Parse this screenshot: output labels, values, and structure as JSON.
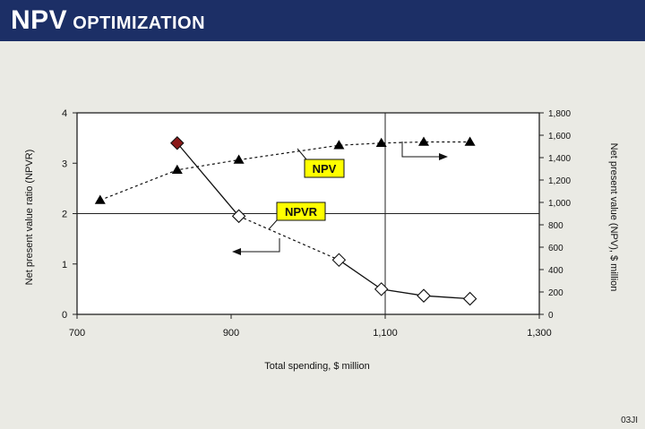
{
  "header": {
    "title_main": "NPV",
    "title_sub": "OPTIMIZATION"
  },
  "figure_id": "03JI",
  "chart_data": {
    "type": "scatter",
    "xlabel": "Total spending, $ million",
    "ylabel_left": "Net present value ratio (NPVR)",
    "ylabel_right": "Net present value (NPV), $ million",
    "xlim": [
      700,
      1300
    ],
    "ylim_left": [
      0,
      4
    ],
    "ylim_right": [
      0,
      1800
    ],
    "x_ticks": [
      "700",
      "900",
      "1,100",
      "1,300"
    ],
    "y_left_ticks": [
      "0",
      "1",
      "2",
      "3",
      "4"
    ],
    "y_right_ticks": [
      "0",
      "200",
      "400",
      "600",
      "800",
      "1,000",
      "1,200",
      "1,400",
      "1,600",
      "1,800"
    ],
    "reference_lines": {
      "x": 1100,
      "y_left": 2
    },
    "series": [
      {
        "name": "NPV",
        "axis": "right",
        "marker": "triangle",
        "line": "dashed",
        "color": "#000000",
        "x": [
          730,
          830,
          910,
          1040,
          1095,
          1150,
          1210
        ],
        "y": [
          1020,
          1290,
          1380,
          1510,
          1530,
          1540,
          1540
        ]
      },
      {
        "name": "NPVR",
        "axis": "left",
        "marker": "diamond-open",
        "line": "solid-then-dashed",
        "color": "#000000",
        "highlight_color": "#8b1a1a",
        "x": [
          830,
          910,
          1040,
          1095,
          1150,
          1210
        ],
        "y": [
          3.4,
          1.95,
          1.08,
          0.5,
          0.37,
          0.31
        ]
      }
    ],
    "annotations": [
      {
        "text": "NPV",
        "target": "NPV",
        "arrow": "right"
      },
      {
        "text": "NPVR",
        "target": "NPVR",
        "arrow": "left"
      }
    ],
    "colors": {
      "label_fill": "#ffff00",
      "header_bg": "#1c2f66"
    }
  }
}
